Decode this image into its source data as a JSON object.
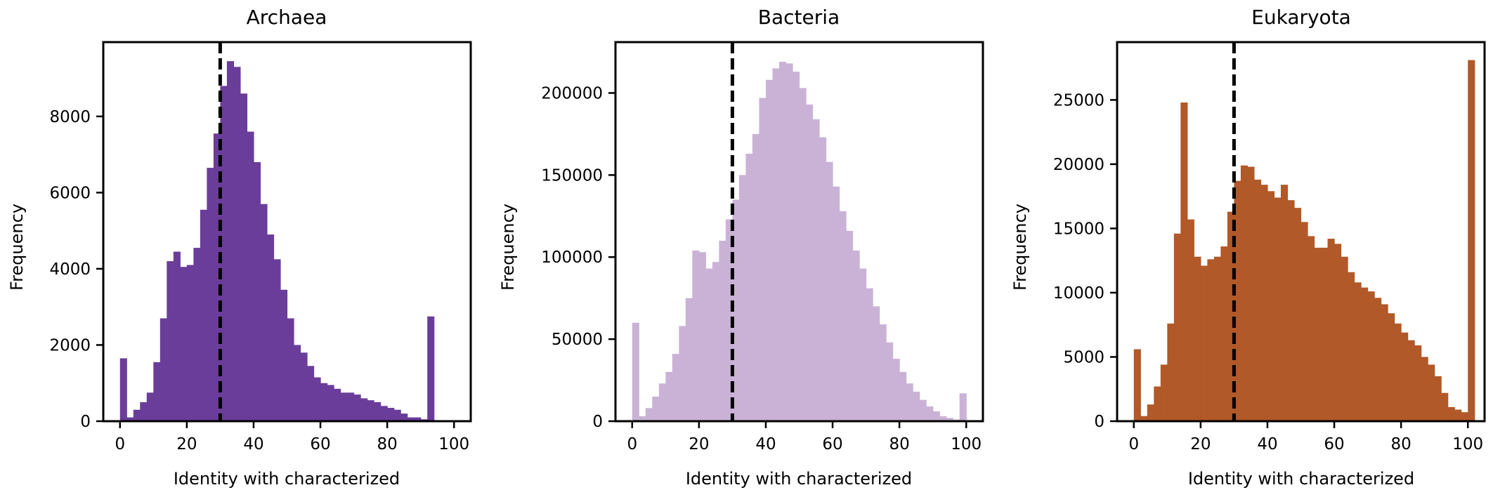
{
  "chart_data": [
    {
      "type": "bar",
      "title": "Archaea",
      "xlabel": "Identity with characterized",
      "ylabel": "Frequency",
      "color": "#6a3d9a",
      "xlim": [
        -5,
        105
      ],
      "ylim": [
        0,
        9950
      ],
      "xticks": [
        "0",
        "20",
        "40",
        "60",
        "80",
        "100"
      ],
      "yticks": [
        "0",
        "2000",
        "4000",
        "6000",
        "8000"
      ],
      "reference_line_x": 30,
      "bin_width": 2,
      "bins_start": 0,
      "values": [
        1650,
        100,
        300,
        500,
        750,
        1550,
        2700,
        4200,
        4450,
        4050,
        4100,
        4550,
        5550,
        6650,
        7550,
        8800,
        9450,
        9300,
        8600,
        7600,
        6800,
        5700,
        4900,
        4250,
        3450,
        2700,
        2000,
        1800,
        1450,
        1150,
        1000,
        950,
        850,
        750,
        750,
        700,
        600,
        550,
        500,
        400,
        350,
        300,
        200,
        100,
        100,
        50,
        2750
      ]
    },
    {
      "type": "bar",
      "title": "Bacteria",
      "xlabel": "Identity with characterized",
      "ylabel": "Frequency",
      "color": "#cab2d6",
      "xlim": [
        -5,
        105
      ],
      "ylim": [
        0,
        231000
      ],
      "xticks": [
        "0",
        "20",
        "40",
        "60",
        "80",
        "100"
      ],
      "yticks": [
        "0",
        "50000",
        "100000",
        "150000",
        "200000"
      ],
      "reference_line_x": 30,
      "bin_width": 2,
      "bins_start": 0,
      "values": [
        60000,
        3000,
        8000,
        15000,
        23000,
        30000,
        41000,
        58000,
        75000,
        104000,
        103000,
        93000,
        97000,
        110000,
        123000,
        135000,
        150000,
        163000,
        175000,
        197000,
        208000,
        215000,
        219000,
        218000,
        213000,
        203000,
        193000,
        184000,
        173000,
        158000,
        143000,
        128000,
        116000,
        104000,
        93000,
        81000,
        70000,
        59000,
        48000,
        38000,
        30000,
        23000,
        18000,
        13000,
        9000,
        6000,
        3000,
        2000,
        1000,
        17000
      ]
    },
    {
      "type": "bar",
      "title": "Eukaryota",
      "xlabel": "Identity with characterized",
      "ylabel": "Frequency",
      "color": "#b15928",
      "xlim": [
        -5,
        105
      ],
      "ylim": [
        0,
        29500
      ],
      "xticks": [
        "0",
        "20",
        "40",
        "60",
        "80",
        "100"
      ],
      "yticks": [
        "0",
        "5000",
        "10000",
        "15000",
        "20000",
        "25000"
      ],
      "reference_line_x": 30,
      "bin_width": 2,
      "bins_start": 0,
      "values": [
        5600,
        400,
        1300,
        2700,
        4400,
        7600,
        14600,
        24800,
        15700,
        12800,
        12100,
        12600,
        12800,
        13600,
        16300,
        18700,
        19900,
        19800,
        18800,
        18400,
        17900,
        17400,
        18400,
        17200,
        16600,
        15500,
        14400,
        13500,
        13500,
        14200,
        13800,
        12800,
        11600,
        10800,
        10400,
        10100,
        9600,
        9100,
        8400,
        7600,
        6900,
        6300,
        5900,
        5000,
        4400,
        3500,
        2200,
        1100,
        900,
        700,
        28100
      ]
    }
  ]
}
